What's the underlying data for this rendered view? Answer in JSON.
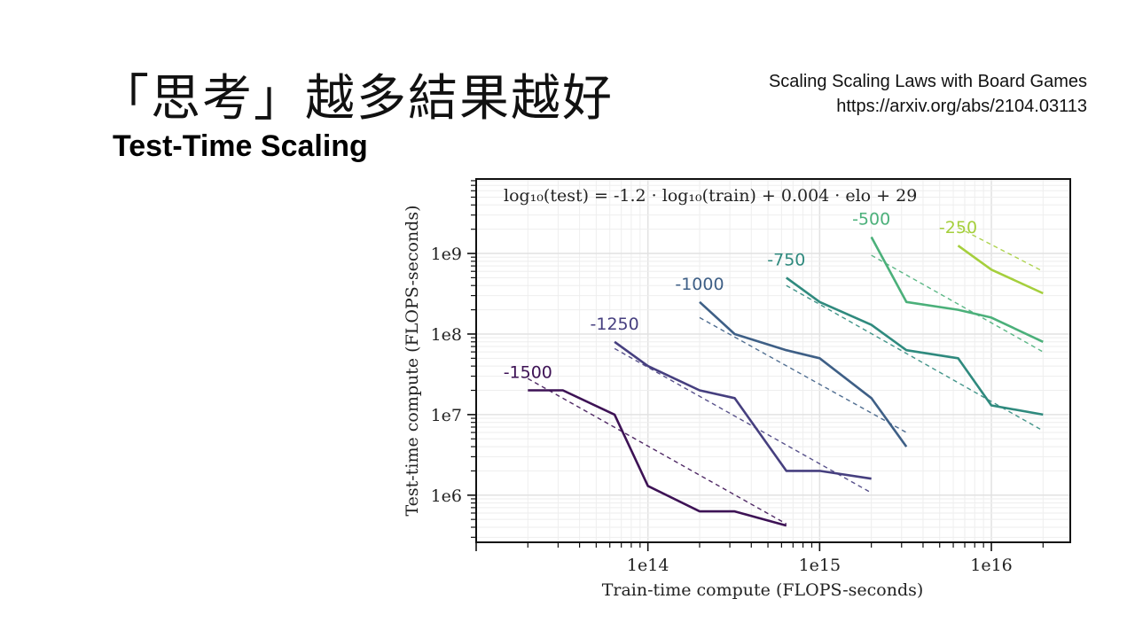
{
  "slide": {
    "title": "「思考」越多結果越好",
    "subtitle": "Test-Time Scaling",
    "reference_title": "Scaling Scaling Laws with Board Games",
    "reference_url": "https://arxiv.org/abs/2104.03113"
  },
  "chart_data": {
    "type": "line",
    "title": "",
    "annotation": "log₁₀(test) = -1.2 · log₁₀(train) + 0.004 · elo + 29",
    "xlabel": "Train-time compute (FLOPS-seconds)",
    "ylabel": "Test-time compute (FLOPS-seconds)",
    "xscale": "log",
    "yscale": "log",
    "xlim": [
      10000000000000.0,
      2.88e+16
    ],
    "ylim": [
      260000.0,
      8400000000.0
    ],
    "xticks": [
      {
        "value": 100000000000000.0,
        "label": "1e14"
      },
      {
        "value": 1000000000000000.0,
        "label": "1e15"
      },
      {
        "value": 1e+16,
        "label": "1e16"
      }
    ],
    "yticks": [
      {
        "value": 1000000.0,
        "label": "1e6"
      },
      {
        "value": 10000000.0,
        "label": "1e7"
      },
      {
        "value": 100000000.0,
        "label": "1e8"
      },
      {
        "value": 1000000000.0,
        "label": "1e9"
      }
    ],
    "grid": true,
    "series": [
      {
        "name": "-1500",
        "color": "#3d1255",
        "x": [
          20000000000000.0,
          32000000000000.0,
          64000000000000.0,
          100000000000000.0,
          200000000000000.0,
          320000000000000.0,
          640000000000000.0
        ],
        "y": [
          20000000.0,
          20000000.0,
          10000000.0,
          1300000.0,
          630000.0,
          630000.0,
          420000.0
        ],
        "fit": {
          "x": [
            20000000000000.0,
            640000000000000.0
          ],
          "y": [
            28000000.0,
            440000.0
          ]
        }
      },
      {
        "name": "-1250",
        "color": "#463f7f",
        "x": [
          64000000000000.0,
          100000000000000.0,
          200000000000000.0,
          320000000000000.0,
          640000000000000.0,
          1000000000000000.0,
          2000000000000000.0
        ],
        "y": [
          80000000.0,
          40000000.0,
          20000000.0,
          16000000.0,
          2000000.0,
          2000000.0,
          1600000.0
        ],
        "fit": {
          "x": [
            64000000000000.0,
            2000000000000000.0
          ],
          "y": [
            66000000.0,
            1070000.0
          ]
        }
      },
      {
        "name": "-1000",
        "color": "#3e5f86",
        "x": [
          200000000000000.0,
          320000000000000.0,
          640000000000000.0,
          1000000000000000.0,
          2000000000000000.0,
          3200000000000000.0
        ],
        "y": [
          250000000.0,
          100000000.0,
          63000000.0,
          50000000.0,
          16000000.0,
          4000000.0
        ],
        "fit": {
          "x": [
            200000000000000.0,
            3200000000000000.0
          ],
          "y": [
            160000000.0,
            6000000.0
          ]
        }
      },
      {
        "name": "-750",
        "color": "#2f8a7e",
        "x": [
          640000000000000.0,
          1000000000000000.0,
          2000000000000000.0,
          3200000000000000.0,
          6400000000000000.0,
          1e+16,
          2e+16
        ],
        "y": [
          500000000.0,
          250000000.0,
          130000000.0,
          63000000.0,
          50000000.0,
          13000000.0,
          10000000.0
        ],
        "fit": {
          "x": [
            640000000000000.0,
            2e+16
          ],
          "y": [
            400000000.0,
            6300000.0
          ]
        }
      },
      {
        "name": "-500",
        "color": "#4bb07a",
        "x": [
          2000000000000000.0,
          3200000000000000.0,
          6400000000000000.0,
          1e+16,
          2e+16
        ],
        "y": [
          1600000000.0,
          250000000.0,
          200000000.0,
          160000000.0,
          80000000.0
        ],
        "fit": {
          "x": [
            2000000000000000.0,
            2e+16
          ],
          "y": [
            950000000.0,
            60000000.0
          ]
        }
      },
      {
        "name": "-250",
        "color": "#a5cf3c",
        "x": [
          6400000000000000.0,
          1e+16,
          2e+16
        ],
        "y": [
          1250000000.0,
          630000000.0,
          320000000.0
        ],
        "fit": {
          "x": [
            6400000000000000.0,
            2e+16
          ],
          "y": [
            2100000000.0,
            600000000.0
          ]
        }
      }
    ]
  }
}
